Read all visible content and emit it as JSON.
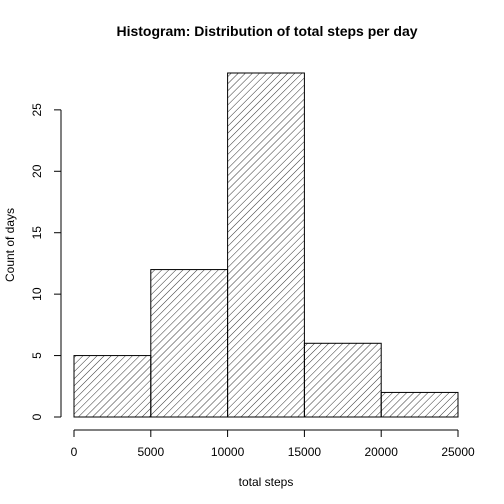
{
  "chart_data": {
    "type": "bar",
    "title": "Histogram: Distribution of total steps per day",
    "xlabel": "total steps",
    "ylabel": "Count of days",
    "bins": [
      {
        "from": 0,
        "to": 5000,
        "count": 5
      },
      {
        "from": 5000,
        "to": 10000,
        "count": 12
      },
      {
        "from": 10000,
        "to": 15000,
        "count": 28
      },
      {
        "from": 15000,
        "to": 20000,
        "count": 6
      },
      {
        "from": 20000,
        "to": 25000,
        "count": 2
      }
    ],
    "xlim": [
      0,
      25000
    ],
    "ylim": [
      0,
      28
    ],
    "x_ticks": [
      0,
      5000,
      10000,
      15000,
      20000,
      25000
    ],
    "y_ticks": [
      0,
      5,
      10,
      15,
      20,
      25
    ],
    "fill": "diagonal hatch",
    "colors": {
      "stroke": "#000000",
      "background": "#ffffff"
    },
    "grid": false,
    "legend": "none"
  }
}
